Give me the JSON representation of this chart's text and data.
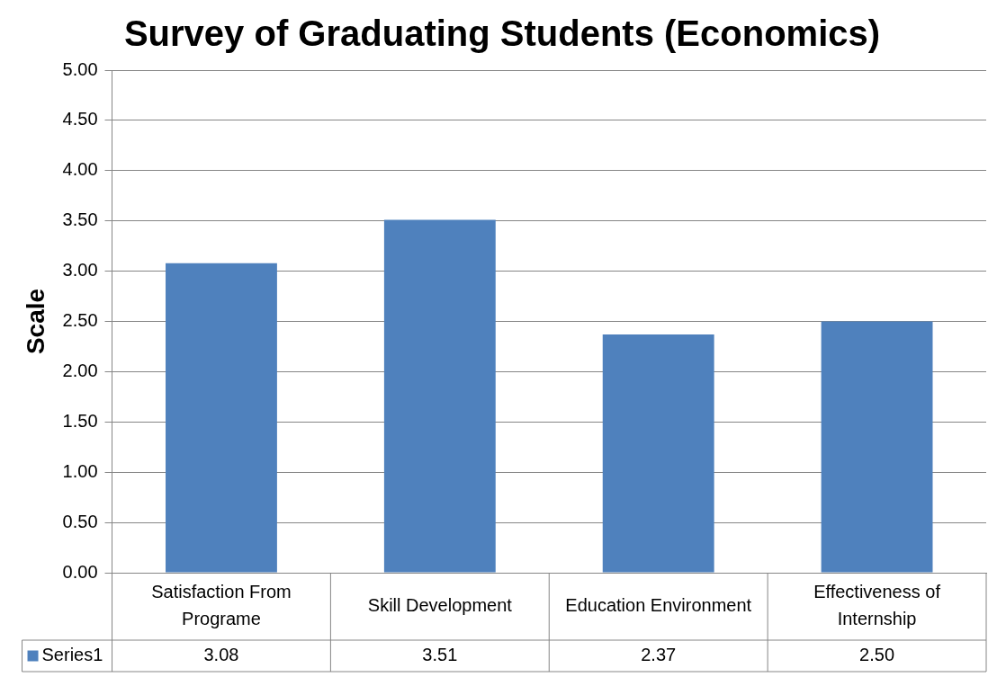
{
  "chart_data": {
    "type": "bar",
    "title": "Survey of Graduating Students (Economics)",
    "ylabel": "Scale",
    "categories": [
      "Satisfaction From Programe",
      "Skill Development",
      "Education Environment",
      "Effectiveness of Internship"
    ],
    "series": [
      {
        "name": "Series1",
        "color": "#4f81bd",
        "values": [
          3.08,
          3.51,
          2.37,
          2.5
        ],
        "value_labels": [
          "3.08",
          "3.51",
          "2.37",
          "2.50"
        ]
      }
    ],
    "ylim": [
      0,
      5
    ],
    "yticks": [
      {
        "value": 0,
        "label": "0.00"
      },
      {
        "value": 0.5,
        "label": "0.50"
      },
      {
        "value": 1,
        "label": "1.00"
      },
      {
        "value": 1.5,
        "label": "1.50"
      },
      {
        "value": 2,
        "label": "2.00"
      },
      {
        "value": 2.5,
        "label": "2.50"
      },
      {
        "value": 3,
        "label": "3.00"
      },
      {
        "value": 3.5,
        "label": "3.50"
      },
      {
        "value": 4,
        "label": "4.00"
      },
      {
        "value": 4.5,
        "label": "4.50"
      },
      {
        "value": 5,
        "label": "5.00"
      }
    ],
    "grid": "y",
    "legend": "bottom"
  }
}
